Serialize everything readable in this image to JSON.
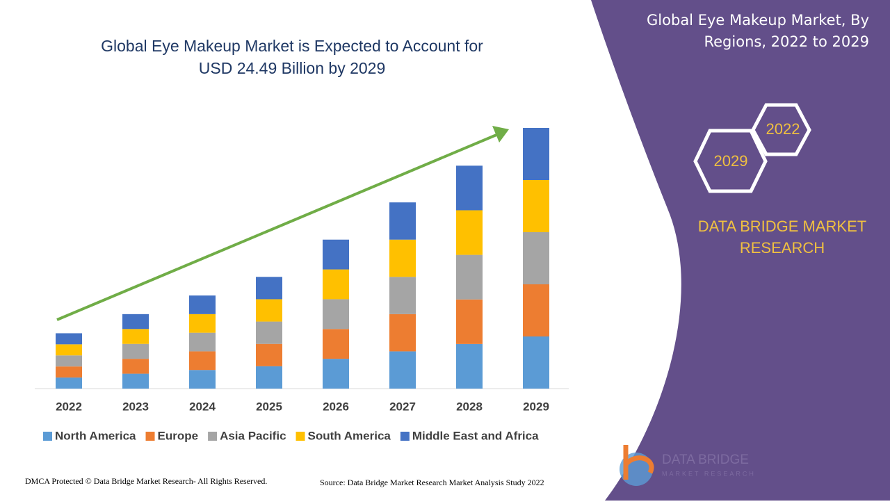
{
  "chart_data": {
    "type": "stacked-bar",
    "title": "Global Eye Makeup Market is Expected to Account for USD 24.49 Billion by 2029",
    "categories": [
      "2022",
      "2023",
      "2024",
      "2025",
      "2026",
      "2027",
      "2028",
      "2029"
    ],
    "series": [
      {
        "name": "North America",
        "color": "#5b9bd5",
        "values": [
          1.04,
          1.4,
          1.75,
          2.1,
          2.8,
          3.5,
          4.19,
          4.9
        ]
      },
      {
        "name": "Europe",
        "color": "#ed7d31",
        "values": [
          1.04,
          1.4,
          1.75,
          2.1,
          2.8,
          3.5,
          4.19,
          4.9
        ]
      },
      {
        "name": "Asia Pacific",
        "color": "#a5a5a5",
        "values": [
          1.04,
          1.4,
          1.75,
          2.1,
          2.8,
          3.5,
          4.19,
          4.9
        ]
      },
      {
        "name": "South America",
        "color": "#ffc000",
        "values": [
          1.04,
          1.4,
          1.75,
          2.1,
          2.8,
          3.5,
          4.19,
          4.9
        ]
      },
      {
        "name": "Middle East and Africa",
        "color": "#4472c4",
        "values": [
          1.04,
          1.4,
          1.75,
          2.1,
          2.8,
          3.5,
          4.19,
          4.9
        ]
      }
    ],
    "ylim": [
      0,
      24.5
    ],
    "legend": "bottom"
  },
  "side": {
    "title": "Global Eye Makeup Market, By Regions, 2022 to 2029",
    "hex_top": "2022",
    "hex_bottom": "2029",
    "brand": "DATA BRIDGE MARKET RESEARCH"
  },
  "logo": {
    "name": "DATA BRIDGE",
    "sub": "MARKET RESEARCH"
  },
  "footer": {
    "left": "DMCA Protected © Data Bridge Market Research- All Rights Reserved.",
    "right": "Source: Data Bridge Market Research Market Analysis Study 2022"
  }
}
